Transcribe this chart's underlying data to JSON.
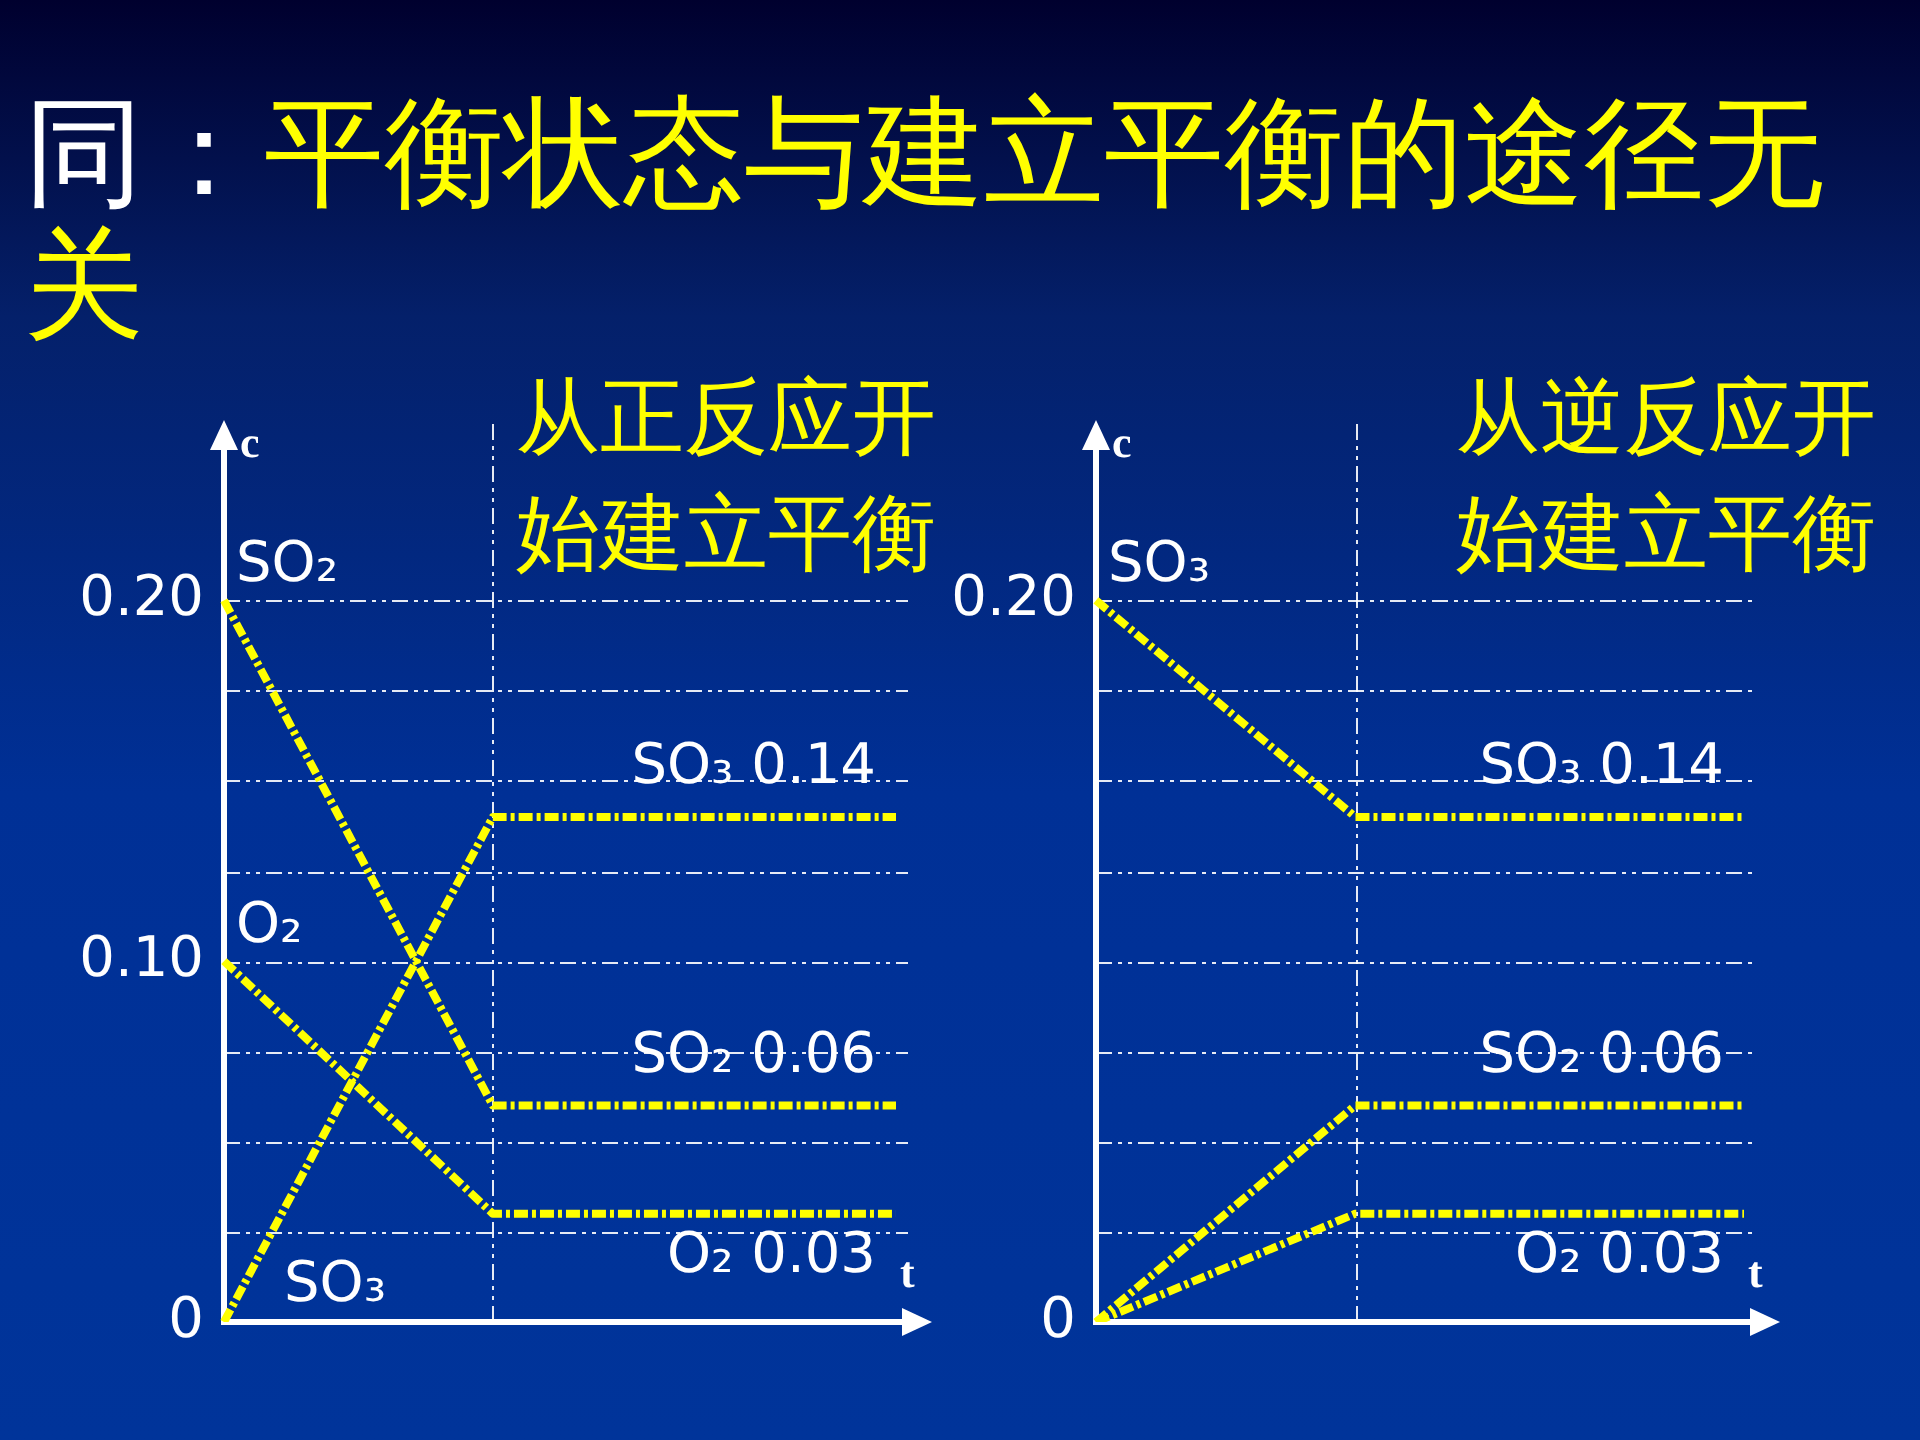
{
  "chart_data": [
    {
      "type": "other",
      "title": "同：平衡状态与建立平衡的途径无关"
    },
    {
      "type": "line",
      "title": "从正反应开始建立平衡",
      "xlabel": "t",
      "ylabel": "c",
      "categories": [
        null,
        null,
        null,
        null,
        null,
        null
      ],
      "series": [
        {
          "name": "SO₂",
          "color": "#ffff00",
          "values": [
            0.2,
            0.13,
            0.06,
            0.06,
            0.06,
            0.06
          ]
        },
        {
          "name": "O₂",
          "color": "#ffff00",
          "values": [
            0.1,
            0.065,
            0.03,
            0.03,
            0.03,
            0.03
          ]
        },
        {
          "name": "SO₃",
          "color": "#ffff00",
          "values": [
            0,
            0.07,
            0.14,
            0.14,
            0.14,
            0.14
          ]
        }
      ],
      "ylim": [
        0,
        0.25
      ],
      "yticks": [
        0,
        {
          "value": 0.025,
          "label": null
        },
        {
          "value": 0.05,
          "label": null
        },
        {
          "value": 0.075,
          "label": null
        },
        {
          "value": 0.1,
          "label": "0.10"
        },
        {
          "value": 0.125,
          "label": null
        },
        {
          "value": 0.15,
          "label": null
        },
        {
          "value": 0.175,
          "label": null
        },
        {
          "value": 0.2,
          "label": "0.20"
        }
      ],
      "grid": "y",
      "legend": false,
      "tick_labels": "y",
      "line_style": "dashed",
      "annotations": [
        {
          "text": "SO₃ 0.14",
          "y": 0.14
        },
        {
          "text": "SO₂ 0.06",
          "y": 0.06
        },
        {
          "text": "O₂ 0.03",
          "y": 0.03
        }
      ]
    },
    {
      "type": "line",
      "title": "从逆反应开始建立平衡",
      "xlabel": "t",
      "ylabel": "c",
      "categories": [
        null,
        null,
        null,
        null,
        null,
        null
      ],
      "series": [
        {
          "name": "SO₃",
          "color": "#ffff00",
          "values": [
            0.2,
            0.17,
            0.14,
            0.14,
            0.14,
            0.14
          ]
        },
        {
          "color": "#ffff00",
          "values": [
            0,
            0.03,
            0.06,
            0.06,
            0.06,
            0.06
          ]
        },
        {
          "color": "#ffff00",
          "values": [
            0,
            0.015,
            0.03,
            0.03,
            0.03,
            0.03
          ]
        }
      ],
      "ylim": [
        0,
        0.25
      ],
      "yticks": [
        0,
        {
          "value": 0.025,
          "label": null
        },
        {
          "value": 0.05,
          "label": null
        },
        {
          "value": 0.075,
          "label": null
        },
        {
          "value": 0.1,
          "label": null
        },
        {
          "value": 0.125,
          "label": null
        },
        {
          "value": 0.15,
          "label": null
        },
        {
          "value": 0.175,
          "label": null
        },
        {
          "value": 0.2,
          "label": "0.20"
        }
      ],
      "grid": "y",
      "legend": false,
      "tick_labels": "y",
      "line_style": "dashed",
      "annotations": [
        {
          "text": "SO₃ 0.14",
          "y": 0.14
        },
        {
          "text": "SO₂ 0.06",
          "y": 0.06
        },
        {
          "text": "O₂ 0.03",
          "y": 0.03
        }
      ]
    }
  ]
}
